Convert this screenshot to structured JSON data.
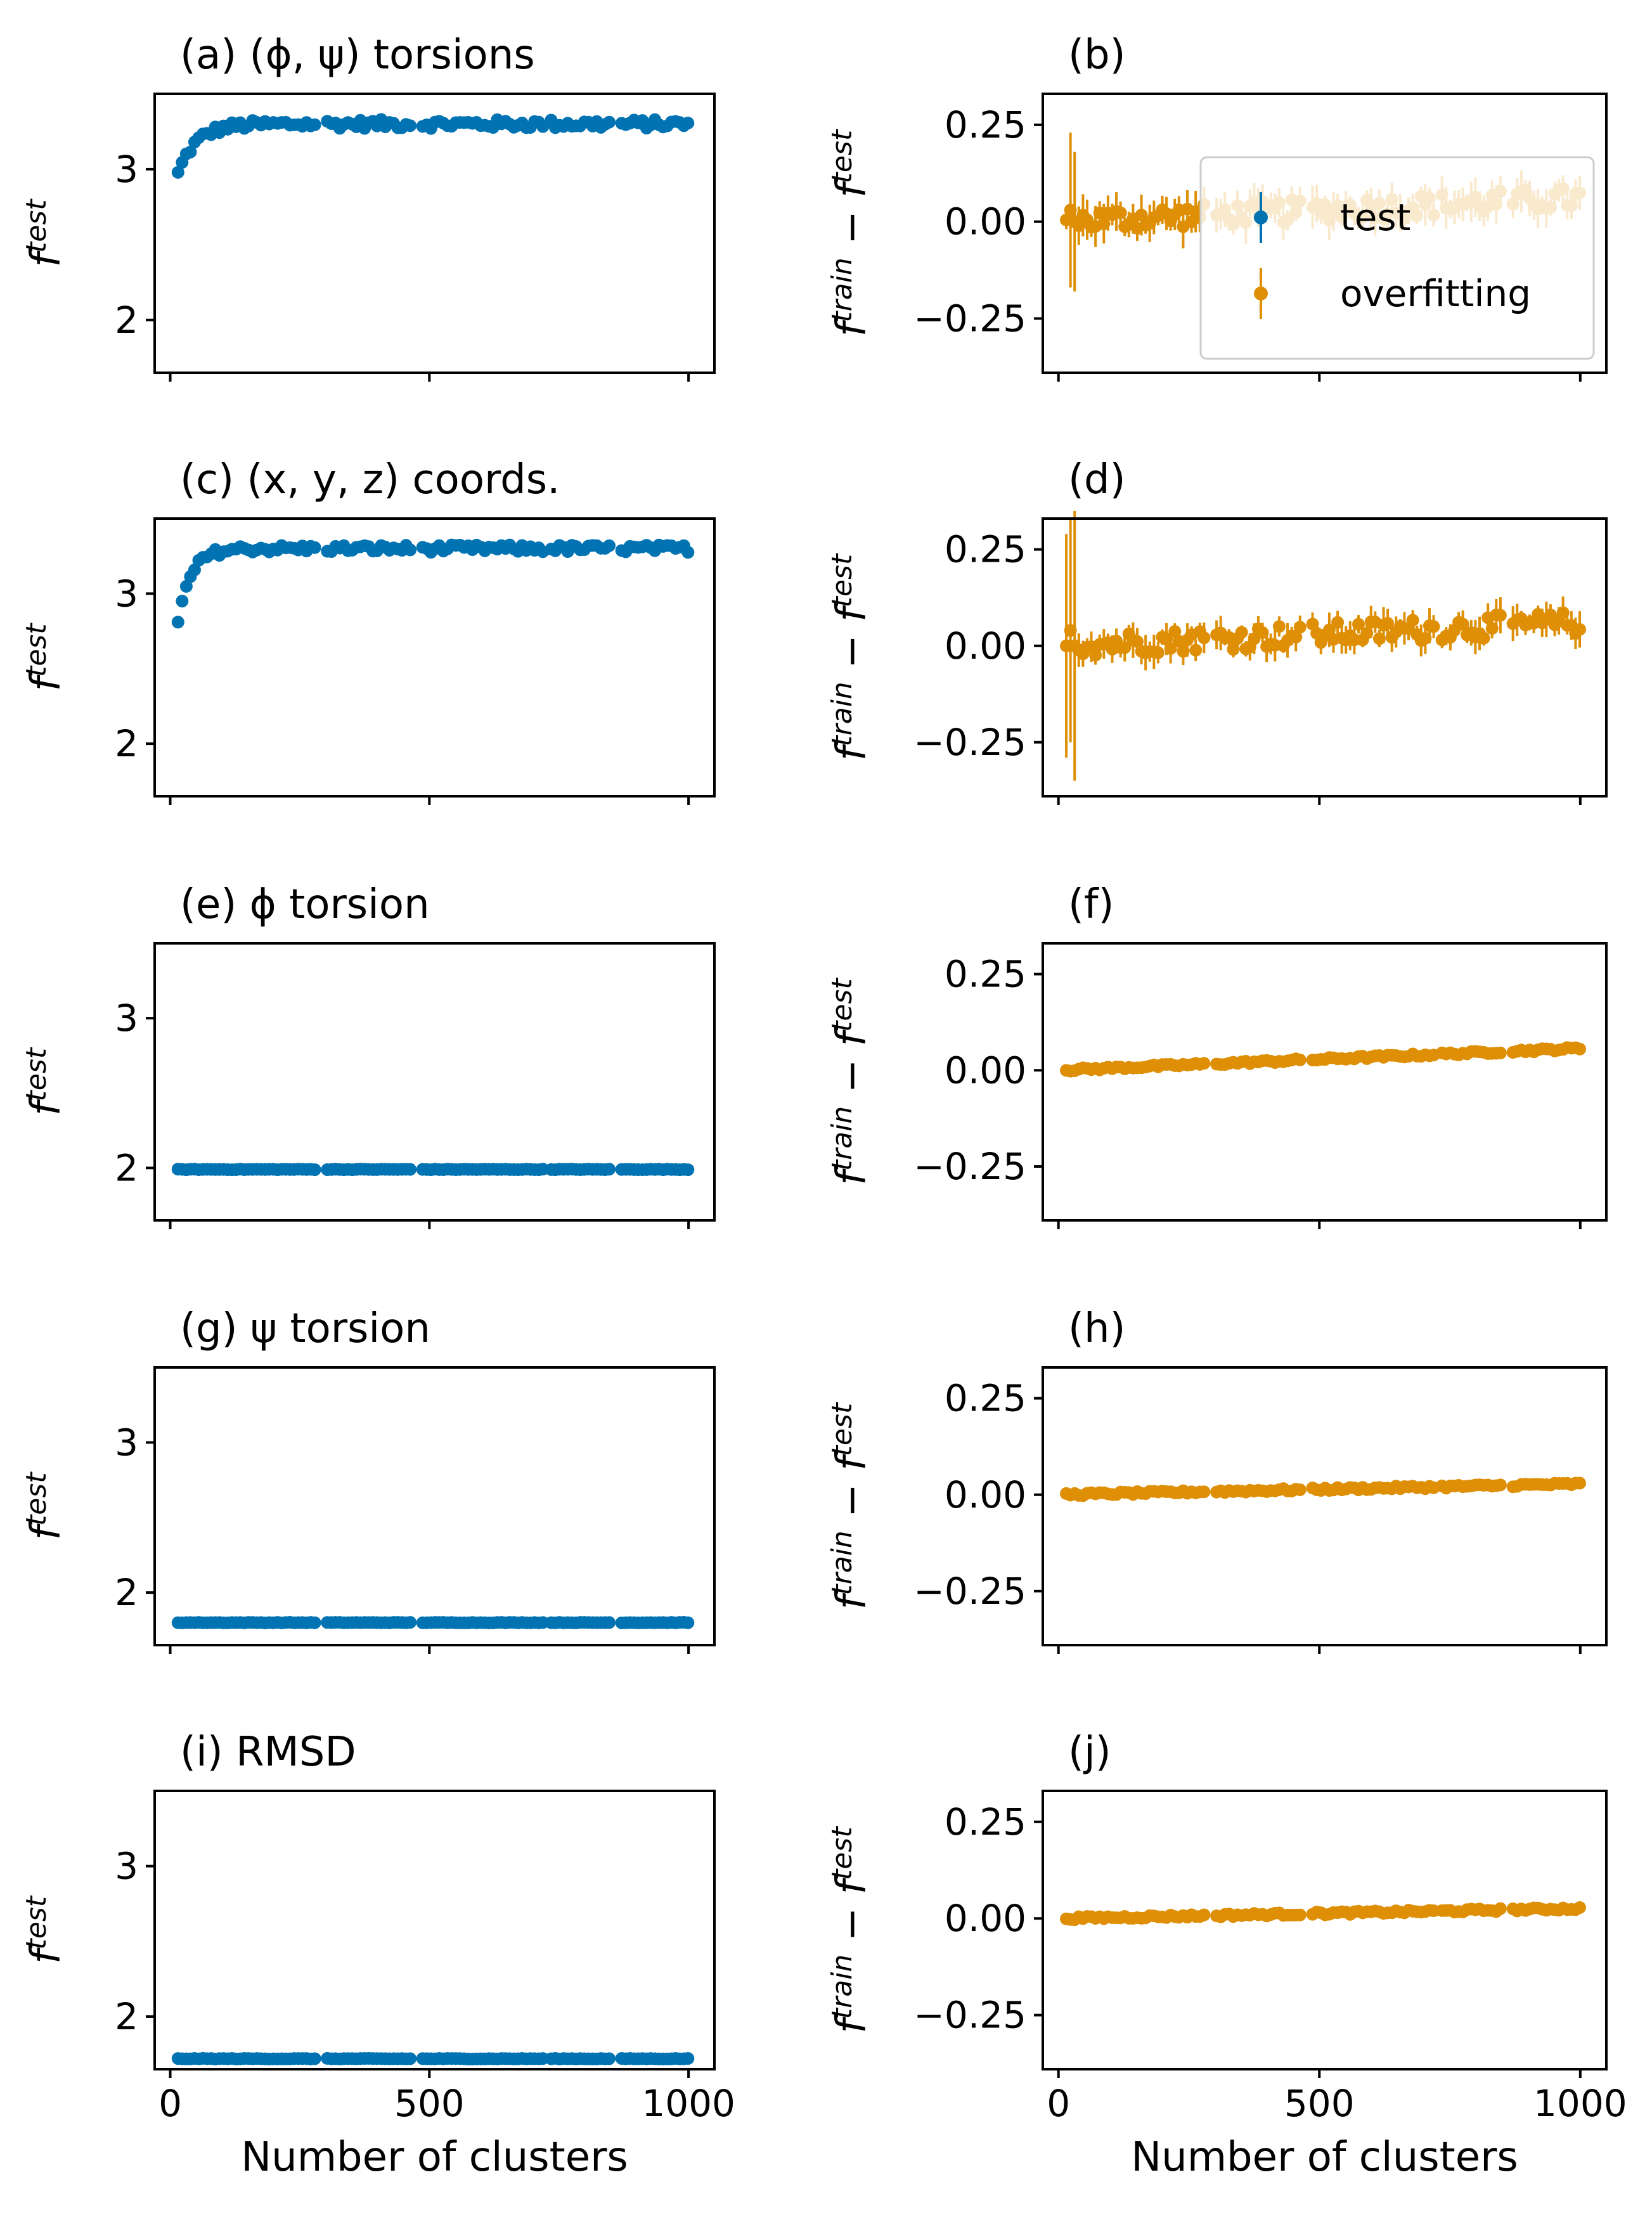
{
  "colors": {
    "test": "#0173b2",
    "overfitting": "#de8f05"
  },
  "legend": {
    "placement": "lower-right",
    "panel": "b",
    "entries": [
      {
        "label": "test",
        "color": "#0173b2"
      },
      {
        "label": "overfitting",
        "color": "#de8f05"
      }
    ]
  },
  "chart_data": [
    {
      "id": "a",
      "type": "scatter",
      "title": "(a) (ϕ, ψ) torsions",
      "ylabel": "f^test",
      "xlabel": "",
      "xlim": [
        -30,
        1050
      ],
      "ylim": [
        1.65,
        3.5
      ],
      "yticks": [
        2,
        3
      ],
      "xticks": [
        0,
        500,
        1000
      ],
      "xtick_labels_shown": false,
      "series": [
        {
          "name": "test",
          "color": "#0173b2",
          "trend": {
            "start": 2.97,
            "plateau": 3.3,
            "k": 35,
            "noise": 0.03,
            "err": 0.02
          }
        }
      ]
    },
    {
      "id": "b",
      "type": "scatter",
      "title": "(b)",
      "ylabel": "f^train − f^test",
      "xlabel": "",
      "xlim": [
        -30,
        1050
      ],
      "ylim": [
        -0.39,
        0.33
      ],
      "yticks": [
        0.25,
        0.0,
        -0.25
      ],
      "ytick_labels": [
        "0.25",
        "0.00",
        "−0.25"
      ],
      "xticks": [
        0,
        500,
        1000
      ],
      "xtick_labels_shown": false,
      "series": [
        {
          "name": "overfitting",
          "color": "#de8f05",
          "trend": {
            "start": 0.0,
            "slope": 6e-05,
            "noise": 0.03,
            "err": 0.035,
            "spikes": [
              [
                20,
                0.03,
                0.2
              ],
              [
                28,
                0.0,
                0.18
              ]
            ]
          }
        }
      ]
    },
    {
      "id": "c",
      "type": "scatter",
      "title": "(c) (x, y, z) coords.",
      "ylabel": "f^test",
      "xlabel": "",
      "xlim": [
        -30,
        1050
      ],
      "ylim": [
        1.65,
        3.5
      ],
      "yticks": [
        2,
        3
      ],
      "xticks": [
        0,
        500,
        1000
      ],
      "xtick_labels_shown": false,
      "series": [
        {
          "name": "test",
          "color": "#0173b2",
          "trend": {
            "start": 2.8,
            "plateau": 3.3,
            "k": 25,
            "noise": 0.025,
            "err": 0.02
          }
        }
      ]
    },
    {
      "id": "d",
      "type": "scatter",
      "title": "(d)",
      "ylabel": "f^train − f^test",
      "xlabel": "",
      "xlim": [
        -30,
        1050
      ],
      "ylim": [
        -0.39,
        0.33
      ],
      "yticks": [
        0.25,
        0.0,
        -0.25
      ],
      "ytick_labels": [
        "0.25",
        "0.00",
        "−0.25"
      ],
      "xticks": [
        0,
        500,
        1000
      ],
      "xtick_labels_shown": false,
      "series": [
        {
          "name": "overfitting",
          "color": "#de8f05",
          "trend": {
            "start": 0.0,
            "slope": 6e-05,
            "noise": 0.03,
            "err": 0.03,
            "spikes": [
              [
                15,
                0.0,
                0.29
              ],
              [
                22,
                0.04,
                0.29
              ],
              [
                28,
                0.0,
                0.35
              ]
            ]
          }
        }
      ]
    },
    {
      "id": "e",
      "type": "scatter",
      "title": "(e) ϕ torsion",
      "ylabel": "f^test",
      "xlabel": "",
      "xlim": [
        -30,
        1050
      ],
      "ylim": [
        1.65,
        3.5
      ],
      "yticks": [
        2,
        3
      ],
      "xticks": [
        0,
        500,
        1000
      ],
      "xtick_labels_shown": false,
      "series": [
        {
          "name": "test",
          "color": "#0173b2",
          "trend": {
            "start": 1.99,
            "plateau": 1.99,
            "k": 1,
            "noise": 0.002,
            "err": 0
          }
        }
      ]
    },
    {
      "id": "f",
      "type": "scatter",
      "title": "(f)",
      "ylabel": "f^train − f^test",
      "xlabel": "",
      "xlim": [
        -30,
        1050
      ],
      "ylim": [
        -0.39,
        0.33
      ],
      "yticks": [
        0.25,
        0.0,
        -0.25
      ],
      "ytick_labels": [
        "0.25",
        "0.00",
        "−0.25"
      ],
      "xticks": [
        0,
        500,
        1000
      ],
      "xtick_labels_shown": false,
      "series": [
        {
          "name": "overfitting",
          "color": "#de8f05",
          "trend": {
            "start": 0.0,
            "slope": 5.7e-05,
            "noise": 0.004,
            "err": 0
          }
        }
      ]
    },
    {
      "id": "g",
      "type": "scatter",
      "title": "(g) ψ torsion",
      "ylabel": "f^test",
      "xlabel": "",
      "xlim": [
        -30,
        1050
      ],
      "ylim": [
        1.65,
        3.5
      ],
      "yticks": [
        2,
        3
      ],
      "xticks": [
        0,
        500,
        1000
      ],
      "xtick_labels_shown": false,
      "series": [
        {
          "name": "test",
          "color": "#0173b2",
          "trend": {
            "start": 1.8,
            "plateau": 1.8,
            "k": 1,
            "noise": 0.002,
            "err": 0
          }
        }
      ]
    },
    {
      "id": "h",
      "type": "scatter",
      "title": "(h)",
      "ylabel": "f^train − f^test",
      "xlabel": "",
      "xlim": [
        -30,
        1050
      ],
      "ylim": [
        -0.39,
        0.33
      ],
      "yticks": [
        0.25,
        0.0,
        -0.25
      ],
      "ytick_labels": [
        "0.25",
        "0.00",
        "−0.25"
      ],
      "xticks": [
        0,
        500,
        1000
      ],
      "xtick_labels_shown": false,
      "series": [
        {
          "name": "overfitting",
          "color": "#de8f05",
          "trend": {
            "start": 0.0,
            "slope": 2.8e-05,
            "noise": 0.004,
            "err": 0
          }
        }
      ]
    },
    {
      "id": "i",
      "type": "scatter",
      "title": "(i) RMSD",
      "ylabel": "f^test",
      "xlabel": "Number of clusters",
      "xlim": [
        -30,
        1050
      ],
      "ylim": [
        1.65,
        3.5
      ],
      "yticks": [
        2,
        3
      ],
      "xticks": [
        0,
        500,
        1000
      ],
      "xtick_labels_shown": true,
      "series": [
        {
          "name": "test",
          "color": "#0173b2",
          "trend": {
            "start": 1.72,
            "plateau": 1.72,
            "k": 1,
            "noise": 0.002,
            "err": 0
          }
        }
      ]
    },
    {
      "id": "j",
      "type": "scatter",
      "title": "(j)",
      "ylabel": "f^train − f^test",
      "xlabel": "Number of clusters",
      "xlim": [
        -30,
        1050
      ],
      "ylim": [
        -0.39,
        0.33
      ],
      "yticks": [
        0.25,
        0.0,
        -0.25
      ],
      "ytick_labels": [
        "0.25",
        "0.00",
        "−0.25"
      ],
      "xticks": [
        0,
        500,
        1000
      ],
      "xtick_labels_shown": true,
      "series": [
        {
          "name": "overfitting",
          "color": "#de8f05",
          "trend": {
            "start": 0.0,
            "slope": 2.6e-05,
            "noise": 0.004,
            "err": 0
          }
        }
      ]
    }
  ]
}
